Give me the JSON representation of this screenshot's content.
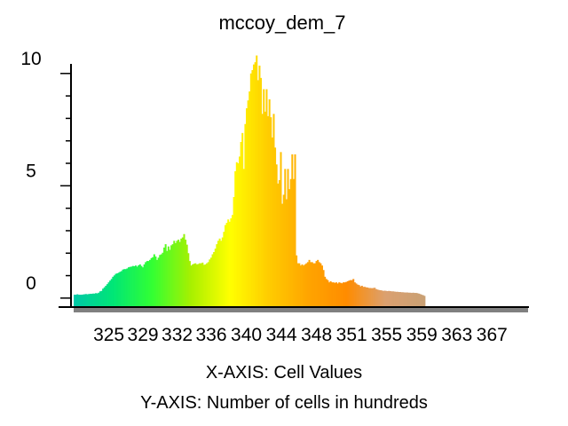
{
  "chart_data": {
    "type": "bar",
    "title": "mccoy_dem_7",
    "xlabel": "X-AXIS: Cell Values",
    "ylabel": "Y-AXIS: Number of cells in hundreds",
    "x_tick_labels": [
      "325",
      "329",
      "332",
      "336",
      "340",
      "344",
      "348",
      "351",
      "355",
      "359",
      "363",
      "367"
    ],
    "x_tick_values": [
      325,
      328.6,
      332.2,
      335.8,
      339.5,
      343.2,
      346.9,
      350.6,
      354.3,
      358,
      361.7,
      365.4
    ],
    "y_tick_labels": [
      "0",
      "5",
      "10"
    ],
    "y_tick_values": [
      0,
      5,
      10
    ],
    "xlim": [
      321.2,
      369.3
    ],
    "ylim": [
      -0.4,
      10.9
    ],
    "grid": false,
    "legend": "none",
    "gradient_colors": [
      "#00c9a7",
      "#00e676",
      "#33ff33",
      "#a8f000",
      "#ffff00",
      "#ffcc00",
      "#ffa500",
      "#ff8c00",
      "#dba070",
      "#c9a074"
    ],
    "bins": {
      "x_start": 321.3,
      "x_step": 0.15,
      "values": [
        0.15,
        0.15,
        0.17,
        0.15,
        0.15,
        0.15,
        0.16,
        0.17,
        0.18,
        0.17,
        0.18,
        0.19,
        0.19,
        0.2,
        0.2,
        0.22,
        0.21,
        0.24,
        0.3,
        0.32,
        0.42,
        0.48,
        0.55,
        0.62,
        0.7,
        0.78,
        0.85,
        0.95,
        1.01,
        1.08,
        1.1,
        1.13,
        1.17,
        1.2,
        1.27,
        1.29,
        1.29,
        1.32,
        1.37,
        1.39,
        1.4,
        1.43,
        1.42,
        1.45,
        1.4,
        1.46,
        1.5,
        1.43,
        1.37,
        1.5,
        1.6,
        1.65,
        1.65,
        1.7,
        1.78,
        1.82,
        1.95,
        1.85,
        1.7,
        1.8,
        1.92,
        1.95,
        2.02,
        2.25,
        2.4,
        2.1,
        2.3,
        2.15,
        2.35,
        2.4,
        2.55,
        2.45,
        2.55,
        2.6,
        2.5,
        2.65,
        2.7,
        2.85,
        2.6,
        2.38,
        2.0,
        1.65,
        1.45,
        1.5,
        1.53,
        1.55,
        1.5,
        1.52,
        1.55,
        1.55,
        1.58,
        1.48,
        1.5,
        1.55,
        1.6,
        1.72,
        1.8,
        1.95,
        2.05,
        2.2,
        2.4,
        2.55,
        2.65,
        2.55,
        2.7,
        2.95,
        3.25,
        3.35,
        3.5,
        3.4,
        3.55,
        3.7,
        4.5,
        5.65,
        6.05,
        6.0,
        6.3,
        6.95,
        7.35,
        5.75,
        7.75,
        8.45,
        8.8,
        9.2,
        10.0,
        10.15,
        10.4,
        10.5,
        10.8,
        9.7,
        10.35,
        9.8,
        8.2,
        9.3,
        8.3,
        9.3,
        8.1,
        8.85,
        8.05,
        7.15,
        8.2,
        6.7,
        5.95,
        5.1,
        5.25,
        6.5,
        4.2,
        4.6,
        5.75,
        4.4,
        5.75,
        4.85,
        5.3,
        6.4,
        5.3,
        6.4,
        1.9,
        1.55,
        1.55,
        1.45,
        1.5,
        1.45,
        1.5,
        1.55,
        1.6,
        1.7,
        1.6,
        1.6,
        1.55,
        1.55,
        1.65,
        1.7,
        1.6,
        1.55,
        1.45,
        1.25,
        0.95,
        0.85,
        0.8,
        0.7,
        0.75,
        0.7,
        0.7,
        0.68,
        0.7,
        0.65,
        0.7,
        0.68,
        0.66,
        0.7,
        0.7,
        0.72,
        0.75,
        0.78,
        0.8,
        0.8,
        0.85,
        0.7,
        0.65,
        0.6,
        0.58,
        0.52,
        0.55,
        0.5,
        0.5,
        0.48,
        0.47,
        0.45,
        0.45,
        0.44,
        0.45,
        0.46,
        0.4,
        0.38,
        0.36,
        0.35,
        0.34,
        0.32,
        0.33,
        0.32,
        0.31,
        0.32,
        0.31,
        0.3,
        0.3,
        0.29,
        0.28,
        0.28,
        0.27,
        0.27,
        0.26,
        0.26,
        0.25,
        0.25,
        0.25,
        0.24,
        0.24,
        0.23,
        0.24,
        0.23,
        0.23,
        0.22,
        0.2,
        0.18,
        0.15,
        0.13,
        0.1
      ]
    }
  }
}
